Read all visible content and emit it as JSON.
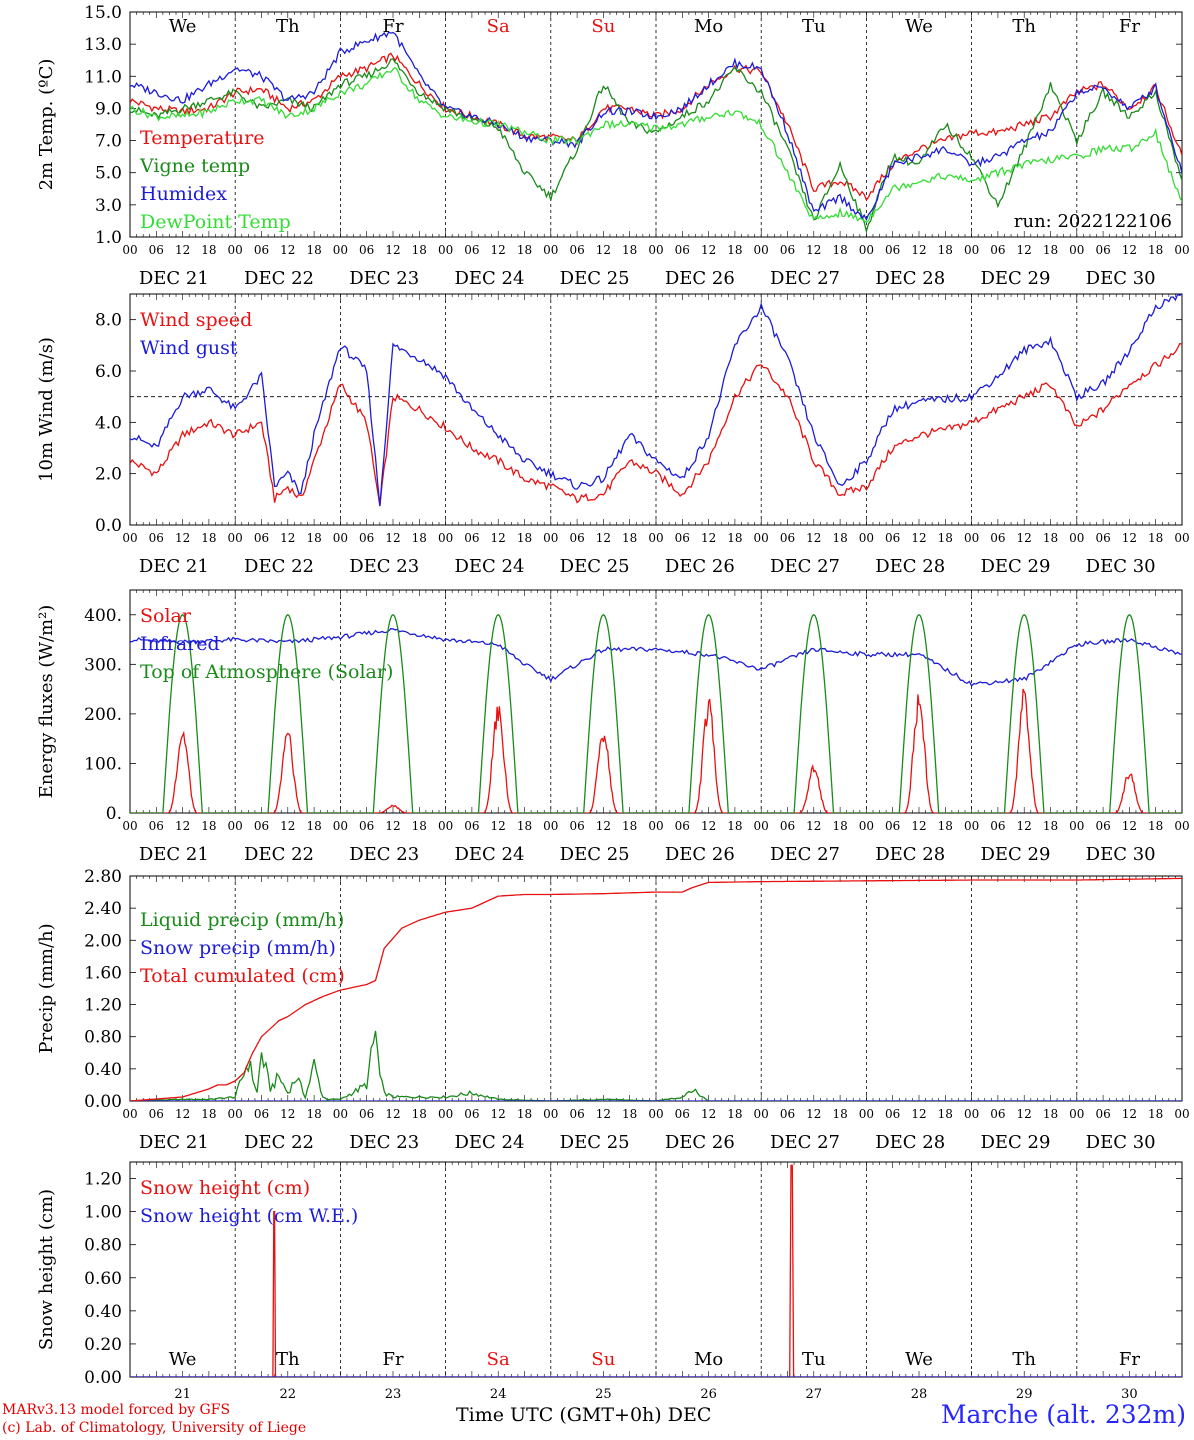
{
  "footer": {
    "credit_line1": "MARv3.13 model forced by GFS",
    "credit_line2": "(c) Lab. of Climatology, University of Liege",
    "xaxis_title": "Time UTC (GMT+0h) DEC",
    "station": "Marche (alt. 232m)"
  },
  "colors": {
    "red": "#e81010",
    "green": "#1a8a1a",
    "blue": "#1c1cd8",
    "lightgreen": "#33dd33",
    "weekend": "#e81010"
  },
  "chart_data": [
    {
      "id": "temp",
      "type": "line",
      "ylabel": "2m Temp. (ºC)",
      "ylim": [
        1.0,
        15.0
      ],
      "yticks": [
        "1.0",
        "3.0",
        "5.0",
        "7.0",
        "9.0",
        "11.0",
        "13.0",
        "15.0"
      ],
      "hour_ticks": [
        "00",
        "06",
        "12",
        "18"
      ],
      "dates": [
        "DEC 21",
        "DEC 22",
        "DEC 23",
        "DEC 24",
        "DEC 25",
        "DEC 26",
        "DEC 27",
        "DEC 28",
        "DEC 29",
        "DEC 30"
      ],
      "weekdays": [
        "We",
        "Th",
        "Fr",
        "Sa",
        "Su",
        "Mo",
        "Tu",
        "We",
        "Th",
        "Fr"
      ],
      "annotation": "run: 2022122106",
      "series": [
        {
          "name": "Temperature",
          "color": "red",
          "x": [
            0,
            6,
            12,
            18,
            24,
            30,
            36,
            42,
            48,
            54,
            60,
            66,
            72,
            78,
            84,
            90,
            96,
            102,
            108,
            114,
            120,
            126,
            132,
            138,
            144,
            150,
            156,
            162,
            168,
            174,
            180,
            186,
            192,
            198,
            204,
            210,
            216,
            222,
            228,
            234,
            240
          ],
          "y": [
            9.5,
            9.0,
            8.8,
            9.0,
            10.0,
            10.2,
            9.0,
            9.5,
            11.0,
            11.5,
            12.3,
            10.5,
            9.0,
            8.5,
            8.0,
            7.3,
            7.2,
            7.0,
            9.0,
            9.0,
            8.5,
            9.0,
            10.5,
            11.5,
            11.3,
            8.0,
            4.0,
            4.5,
            3.5,
            5.5,
            6.5,
            7.0,
            7.5,
            7.5,
            8.0,
            8.5,
            10.0,
            10.5,
            9.0,
            10.3,
            6.0
          ]
        },
        {
          "name": "Vigne temp",
          "color": "green",
          "x": [
            0,
            6,
            12,
            18,
            24,
            30,
            36,
            42,
            48,
            54,
            60,
            66,
            72,
            78,
            84,
            90,
            96,
            102,
            108,
            114,
            120,
            126,
            132,
            138,
            144,
            150,
            156,
            162,
            168,
            174,
            180,
            186,
            192,
            198,
            204,
            210,
            216,
            222,
            228,
            234,
            240
          ],
          "y": [
            9.0,
            8.5,
            9.0,
            9.5,
            10.0,
            9.0,
            9.5,
            9.0,
            10.5,
            11.0,
            12.0,
            10.0,
            9.0,
            8.3,
            7.8,
            5.0,
            3.5,
            6.5,
            10.5,
            8.0,
            7.5,
            8.5,
            9.5,
            11.5,
            10.0,
            6.5,
            2.0,
            5.5,
            1.5,
            6.0,
            5.5,
            8.0,
            6.0,
            3.0,
            6.5,
            10.5,
            7.0,
            10.0,
            8.5,
            10.0,
            4.5
          ]
        },
        {
          "name": "Humidex",
          "color": "blue",
          "x": [
            0,
            6,
            12,
            18,
            24,
            30,
            36,
            42,
            48,
            54,
            60,
            66,
            72,
            78,
            84,
            90,
            96,
            102,
            108,
            114,
            120,
            126,
            132,
            138,
            144,
            150,
            156,
            162,
            168,
            174,
            180,
            186,
            192,
            198,
            204,
            210,
            216,
            222,
            228,
            234,
            240
          ],
          "y": [
            10.5,
            10.0,
            9.5,
            10.5,
            11.5,
            11.0,
            9.5,
            10.0,
            12.5,
            13.2,
            13.8,
            11.0,
            9.0,
            8.5,
            8.0,
            7.2,
            7.0,
            6.8,
            8.8,
            8.8,
            8.5,
            9.0,
            10.5,
            11.8,
            11.5,
            7.5,
            2.5,
            3.5,
            2.0,
            5.5,
            6.0,
            6.5,
            5.5,
            6.0,
            7.0,
            7.5,
            10.0,
            10.3,
            9.0,
            10.3,
            5.0
          ]
        },
        {
          "name": "DewPoint Temp",
          "color": "lightgreen",
          "x": [
            0,
            6,
            12,
            18,
            24,
            30,
            36,
            42,
            48,
            54,
            60,
            66,
            72,
            78,
            84,
            90,
            96,
            102,
            108,
            114,
            120,
            126,
            132,
            138,
            144,
            150,
            156,
            162,
            168,
            174,
            180,
            186,
            192,
            198,
            204,
            210,
            216,
            222,
            228,
            234,
            240
          ],
          "y": [
            9.0,
            8.5,
            8.5,
            8.8,
            9.5,
            9.5,
            8.5,
            9.0,
            10.0,
            10.5,
            11.5,
            9.5,
            8.5,
            8.2,
            8.0,
            7.5,
            7.0,
            7.0,
            8.0,
            8.0,
            7.8,
            8.0,
            8.5,
            8.8,
            8.0,
            5.0,
            2.0,
            2.5,
            2.0,
            4.0,
            4.5,
            4.8,
            4.5,
            5.0,
            5.5,
            5.8,
            6.0,
            6.5,
            6.5,
            7.5,
            3.0
          ]
        }
      ]
    },
    {
      "id": "wind",
      "type": "line",
      "ylabel": "10m Wind (m/s)",
      "ylim": [
        0.0,
        9.0
      ],
      "yticks": [
        "0.0",
        "2.0",
        "4.0",
        "6.0",
        "8.0"
      ],
      "hline": 5.0,
      "hour_ticks": [
        "00",
        "06",
        "12",
        "18"
      ],
      "dates": [
        "DEC 21",
        "DEC 22",
        "DEC 23",
        "DEC 24",
        "DEC 25",
        "DEC 26",
        "DEC 27",
        "DEC 28",
        "DEC 29",
        "DEC 30"
      ],
      "series": [
        {
          "name": "Wind speed",
          "color": "red",
          "x": [
            0,
            6,
            12,
            18,
            24,
            30,
            33,
            36,
            39,
            42,
            48,
            54,
            57,
            60,
            66,
            72,
            78,
            84,
            90,
            96,
            102,
            108,
            114,
            120,
            126,
            132,
            138,
            144,
            150,
            156,
            162,
            168,
            174,
            180,
            186,
            192,
            198,
            204,
            210,
            216,
            222,
            228,
            234,
            240
          ],
          "y": [
            2.5,
            2.0,
            3.5,
            4.0,
            3.5,
            4.0,
            1.0,
            1.5,
            1.0,
            2.5,
            5.5,
            4.0,
            0.7,
            5.0,
            4.5,
            3.8,
            3.0,
            2.5,
            1.8,
            1.5,
            1.0,
            1.2,
            2.5,
            2.0,
            1.2,
            2.5,
            5.0,
            6.3,
            5.0,
            2.5,
            1.2,
            1.5,
            3.0,
            3.5,
            3.7,
            4.0,
            4.5,
            5.0,
            5.5,
            3.8,
            4.5,
            5.5,
            6.2,
            7.0
          ]
        },
        {
          "name": "Wind gust",
          "color": "blue",
          "x": [
            0,
            6,
            12,
            18,
            24,
            30,
            33,
            36,
            39,
            42,
            48,
            54,
            57,
            60,
            66,
            72,
            78,
            84,
            90,
            96,
            102,
            108,
            114,
            120,
            126,
            132,
            138,
            144,
            150,
            156,
            162,
            168,
            174,
            180,
            186,
            192,
            198,
            204,
            210,
            216,
            222,
            228,
            234,
            240
          ],
          "y": [
            3.5,
            3.0,
            5.0,
            5.3,
            4.5,
            5.8,
            1.5,
            2.0,
            1.2,
            3.5,
            7.0,
            6.0,
            0.8,
            7.0,
            6.5,
            5.8,
            4.5,
            3.5,
            2.5,
            2.0,
            1.5,
            1.8,
            3.5,
            2.5,
            1.8,
            3.5,
            7.0,
            8.5,
            6.5,
            3.5,
            1.5,
            2.5,
            4.5,
            4.8,
            4.9,
            5.0,
            5.8,
            6.8,
            7.2,
            5.0,
            5.5,
            6.8,
            8.5,
            9.0
          ]
        }
      ]
    },
    {
      "id": "energy",
      "type": "line",
      "ylabel": "Energy fluxes (W/m²)",
      "ylim": [
        0,
        450
      ],
      "yticks": [
        "0.",
        "100.",
        "200.",
        "300.",
        "400."
      ],
      "hour_ticks": [
        "00",
        "06",
        "12",
        "18"
      ],
      "dates": [
        "DEC 21",
        "DEC 22",
        "DEC 23",
        "DEC 24",
        "DEC 25",
        "DEC 26",
        "DEC 27",
        "DEC 28",
        "DEC 29",
        "DEC 30"
      ],
      "solar_peaks": [
        160,
        150,
        15,
        200,
        160,
        210,
        90,
        225,
        230,
        80
      ],
      "toa_peak": 400,
      "series": [
        {
          "name": "Solar",
          "color": "red"
        },
        {
          "name": "Infrared",
          "color": "blue",
          "x": [
            0,
            12,
            24,
            36,
            48,
            60,
            72,
            84,
            90,
            96,
            108,
            120,
            132,
            144,
            156,
            168,
            180,
            192,
            204,
            216,
            228,
            240
          ],
          "y": [
            350,
            345,
            350,
            345,
            355,
            370,
            350,
            340,
            300,
            270,
            330,
            330,
            320,
            290,
            330,
            320,
            320,
            260,
            270,
            340,
            350,
            320
          ]
        },
        {
          "name": "Top of Atmosphere (Solar)",
          "color": "green"
        }
      ]
    },
    {
      "id": "precip",
      "type": "line",
      "ylabel": "Precip (mm/h)",
      "ylim": [
        0.0,
        2.8
      ],
      "yticks": [
        "0.00",
        "0.40",
        "0.80",
        "1.20",
        "1.60",
        "2.00",
        "2.40",
        "2.80"
      ],
      "hour_ticks": [
        "00",
        "06",
        "12",
        "18"
      ],
      "dates": [
        "DEC 21",
        "DEC 22",
        "DEC 23",
        "DEC 24",
        "DEC 25",
        "DEC 26",
        "DEC 27",
        "DEC 28",
        "DEC 29",
        "DEC 30"
      ],
      "series": [
        {
          "name": "Liquid precip (mm/h)",
          "color": "green",
          "x": [
            0,
            12,
            18,
            24,
            27,
            29,
            30,
            32,
            34,
            36,
            38,
            40,
            42,
            44,
            45,
            48,
            54,
            56,
            57,
            58,
            60,
            66,
            72,
            78,
            84,
            96,
            108,
            120,
            126,
            128,
            132,
            240
          ],
          "y": [
            0,
            0.02,
            0.02,
            0.05,
            0.5,
            0.1,
            0.6,
            0.15,
            0.3,
            0.1,
            0.3,
            0.05,
            0.45,
            0.05,
            0.02,
            0.02,
            0.2,
            0.85,
            0.3,
            0.1,
            0.05,
            0.05,
            0.05,
            0.1,
            0.02,
            0,
            0.02,
            0,
            0.05,
            0.15,
            0,
            0
          ]
        },
        {
          "name": "Snow precip (mm/h)",
          "color": "blue",
          "x": [
            0,
            240
          ],
          "y": [
            0,
            0
          ]
        },
        {
          "name": "Total cumulated (cm)",
          "color": "red",
          "x": [
            0,
            12,
            18,
            20,
            22,
            24,
            26,
            28,
            30,
            34,
            36,
            40,
            44,
            48,
            54,
            56,
            57,
            58,
            62,
            66,
            72,
            78,
            84,
            90,
            96,
            108,
            120,
            126,
            128,
            132,
            144,
            168,
            192,
            216,
            240
          ],
          "y": [
            0,
            0.05,
            0.15,
            0.2,
            0.2,
            0.25,
            0.35,
            0.6,
            0.8,
            1.0,
            1.05,
            1.2,
            1.3,
            1.38,
            1.45,
            1.5,
            1.7,
            1.9,
            2.15,
            2.25,
            2.35,
            2.4,
            2.55,
            2.57,
            2.57,
            2.58,
            2.6,
            2.6,
            2.65,
            2.72,
            2.73,
            2.74,
            2.75,
            2.75,
            2.77
          ]
        }
      ]
    },
    {
      "id": "snow",
      "type": "line",
      "ylabel": "Snow height (cm)",
      "ylim": [
        0.0,
        1.3
      ],
      "yticks": [
        "0.00",
        "0.20",
        "0.40",
        "0.60",
        "0.80",
        "1.00",
        "1.20"
      ],
      "day_numbers": [
        "21",
        "22",
        "23",
        "24",
        "25",
        "26",
        "27",
        "28",
        "29",
        "30"
      ],
      "weekdays": [
        "We",
        "Th",
        "Fr",
        "Sa",
        "Su",
        "Mo",
        "Tu",
        "We",
        "Th",
        "Fr"
      ],
      "series": [
        {
          "name": "Snow height (cm)",
          "color": "red",
          "x": [
            0,
            32.6,
            32.8,
            33.0,
            33.2,
            150.5,
            150.8,
            151.1,
            151.4,
            240
          ],
          "y": [
            0,
            0,
            1.0,
            1.0,
            0,
            0,
            1.28,
            1.28,
            0,
            0
          ]
        },
        {
          "name": "Snow height (cm W.E.)",
          "color": "blue",
          "x": [
            0,
            240
          ],
          "y": [
            0,
            0
          ]
        }
      ]
    }
  ]
}
